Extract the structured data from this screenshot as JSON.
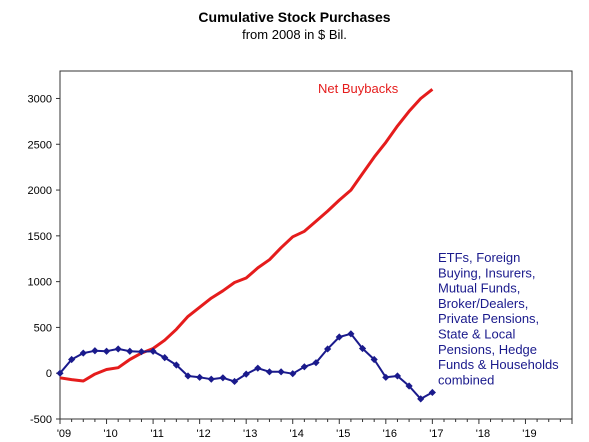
{
  "chart_data": {
    "type": "line",
    "title": "Cumulative Stock Purchases",
    "subtitle": "from 2008 in $ Bil.",
    "xlabel": "",
    "ylabel": "",
    "xlim": [
      2009,
      2020
    ],
    "ylim": [
      -500,
      3300
    ],
    "y_ticks": [
      -500,
      0,
      500,
      1000,
      1500,
      2000,
      2500,
      3000
    ],
    "x_ticks": [
      2009,
      2010,
      2011,
      2012,
      2013,
      2014,
      2015,
      2016,
      2017,
      2018,
      2019
    ],
    "x_tick_labels": [
      "'09",
      "'10",
      "'11",
      "'12",
      "'13",
      "'14",
      "'15",
      "'16",
      "'17",
      "'18",
      "'19"
    ],
    "grid": false,
    "series": [
      {
        "name": "Net Buybacks",
        "color": "#e51c1c",
        "marker": "none",
        "x": [
          2009.0,
          2009.25,
          2009.5,
          2009.75,
          2010.0,
          2010.25,
          2010.5,
          2010.75,
          2011.0,
          2011.25,
          2011.5,
          2011.75,
          2012.0,
          2012.25,
          2012.5,
          2012.75,
          2013.0,
          2013.25,
          2013.5,
          2013.75,
          2014.0,
          2014.25,
          2014.5,
          2014.75,
          2015.0,
          2015.25,
          2015.5,
          2015.75,
          2016.0,
          2016.25,
          2016.5,
          2016.75,
          2017.0
        ],
        "values": [
          -50,
          -70,
          -85,
          -10,
          40,
          60,
          150,
          220,
          270,
          360,
          480,
          620,
          720,
          820,
          900,
          990,
          1040,
          1150,
          1240,
          1370,
          1490,
          1550,
          1660,
          1770,
          1890,
          2000,
          2180,
          2360,
          2520,
          2700,
          2860,
          3000,
          3100
        ]
      },
      {
        "name": "ETFs, Foreign Buying, Insurers, Mutual Funds, Broker/Dealers, Private Pensions, State & Local Pensions, Hedge Funds & Households combined",
        "color": "#1a1a8c",
        "marker": "diamond",
        "x": [
          2009.0,
          2009.25,
          2009.5,
          2009.75,
          2010.0,
          2010.25,
          2010.5,
          2010.75,
          2011.0,
          2011.25,
          2011.5,
          2011.75,
          2012.0,
          2012.25,
          2012.5,
          2012.75,
          2013.0,
          2013.25,
          2013.5,
          2013.75,
          2014.0,
          2014.25,
          2014.5,
          2014.75,
          2015.0,
          2015.25,
          2015.5,
          2015.75,
          2016.0,
          2016.25,
          2016.5,
          2016.75,
          2017.0
        ],
        "values": [
          0,
          150,
          220,
          245,
          240,
          265,
          240,
          235,
          240,
          170,
          90,
          -30,
          -45,
          -65,
          -50,
          -90,
          -10,
          55,
          15,
          15,
          -5,
          70,
          115,
          265,
          395,
          430,
          270,
          150,
          -45,
          -30,
          -140,
          -280,
          -210
        ]
      }
    ],
    "annotations": [
      {
        "series": 0,
        "lines": [
          "Net Buybacks"
        ]
      },
      {
        "series": 1,
        "lines": [
          "ETFs, Foreign",
          "Buying, Insurers,",
          "Mutual Funds,",
          "Broker/Dealers,",
          "Private Pensions,",
          "State & Local",
          "Pensions,  Hedge",
          "Funds & Households",
          "combined"
        ]
      }
    ]
  }
}
